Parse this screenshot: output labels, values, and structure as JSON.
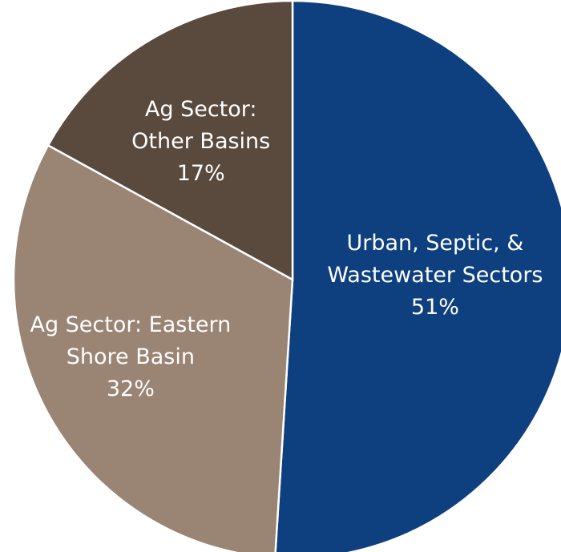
{
  "chart_data": {
    "type": "pie",
    "title": "",
    "slices": [
      {
        "lines": [
          "Urban, Septic, &",
          "Wastewater Sectors"
        ],
        "value": 51,
        "percent_label": "51%",
        "color": "#0e3f7e"
      },
      {
        "lines": [
          "Ag Sector: Eastern",
          "Shore Basin"
        ],
        "value": 32,
        "percent_label": "32%",
        "color": "#9a8474"
      },
      {
        "lines": [
          "Ag Sector:",
          "Other Basins"
        ],
        "value": 17,
        "percent_label": "17%",
        "color": "#5a4a3e"
      }
    ],
    "start_angle_deg": 0,
    "direction": "clockwise",
    "slice_border_color": "#ffffff",
    "legend": "none"
  }
}
